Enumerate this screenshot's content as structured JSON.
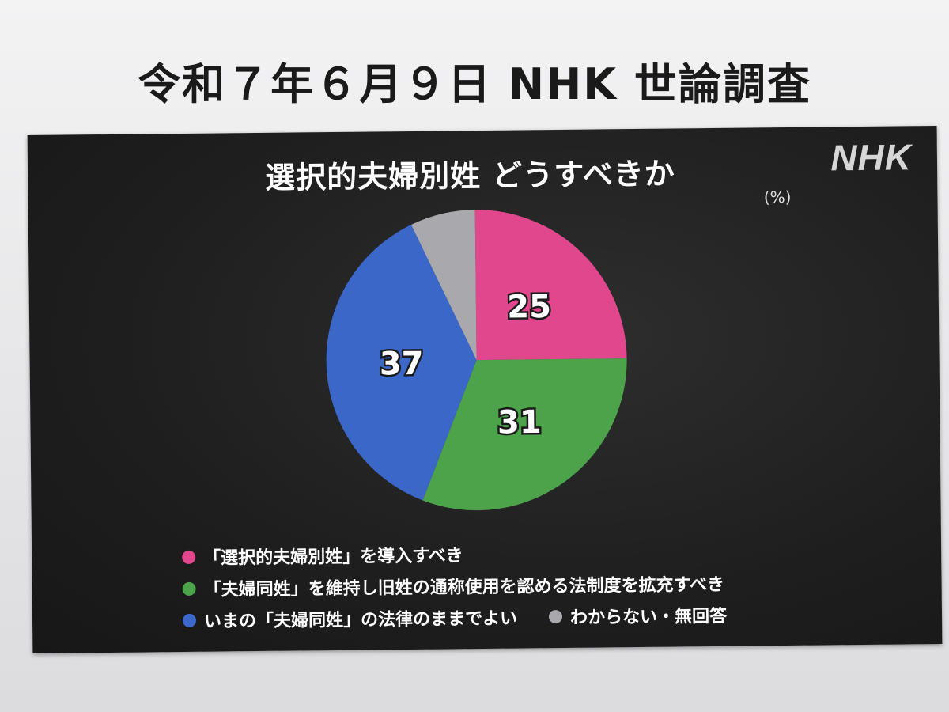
{
  "page": {
    "title": "令和７年６月９日 NHK 世論調査"
  },
  "slide": {
    "title": "選択的夫婦別姓 どうすべきか",
    "unit": "(%)",
    "logo": "NHK"
  },
  "chart_data": {
    "type": "pie",
    "unit": "%",
    "slices": [
      {
        "label": "「選択的夫婦別姓」を導入すべき",
        "value": 25,
        "color": "#e0478c",
        "value_label": "25"
      },
      {
        "label": "「夫婦同姓」を維持し旧姓の通称使用を認める法制度を拡充すべき",
        "value": 31,
        "color": "#4da34a",
        "value_label": "31"
      },
      {
        "label": "いまの「夫婦同姓」の法律のままでよい",
        "value": 37,
        "color": "#3b67c9",
        "value_label": "37"
      },
      {
        "label": "わからない・無回答",
        "value": 7,
        "color": "#a9a9ad",
        "value_label": ""
      }
    ],
    "legend_placement": "bottom"
  }
}
